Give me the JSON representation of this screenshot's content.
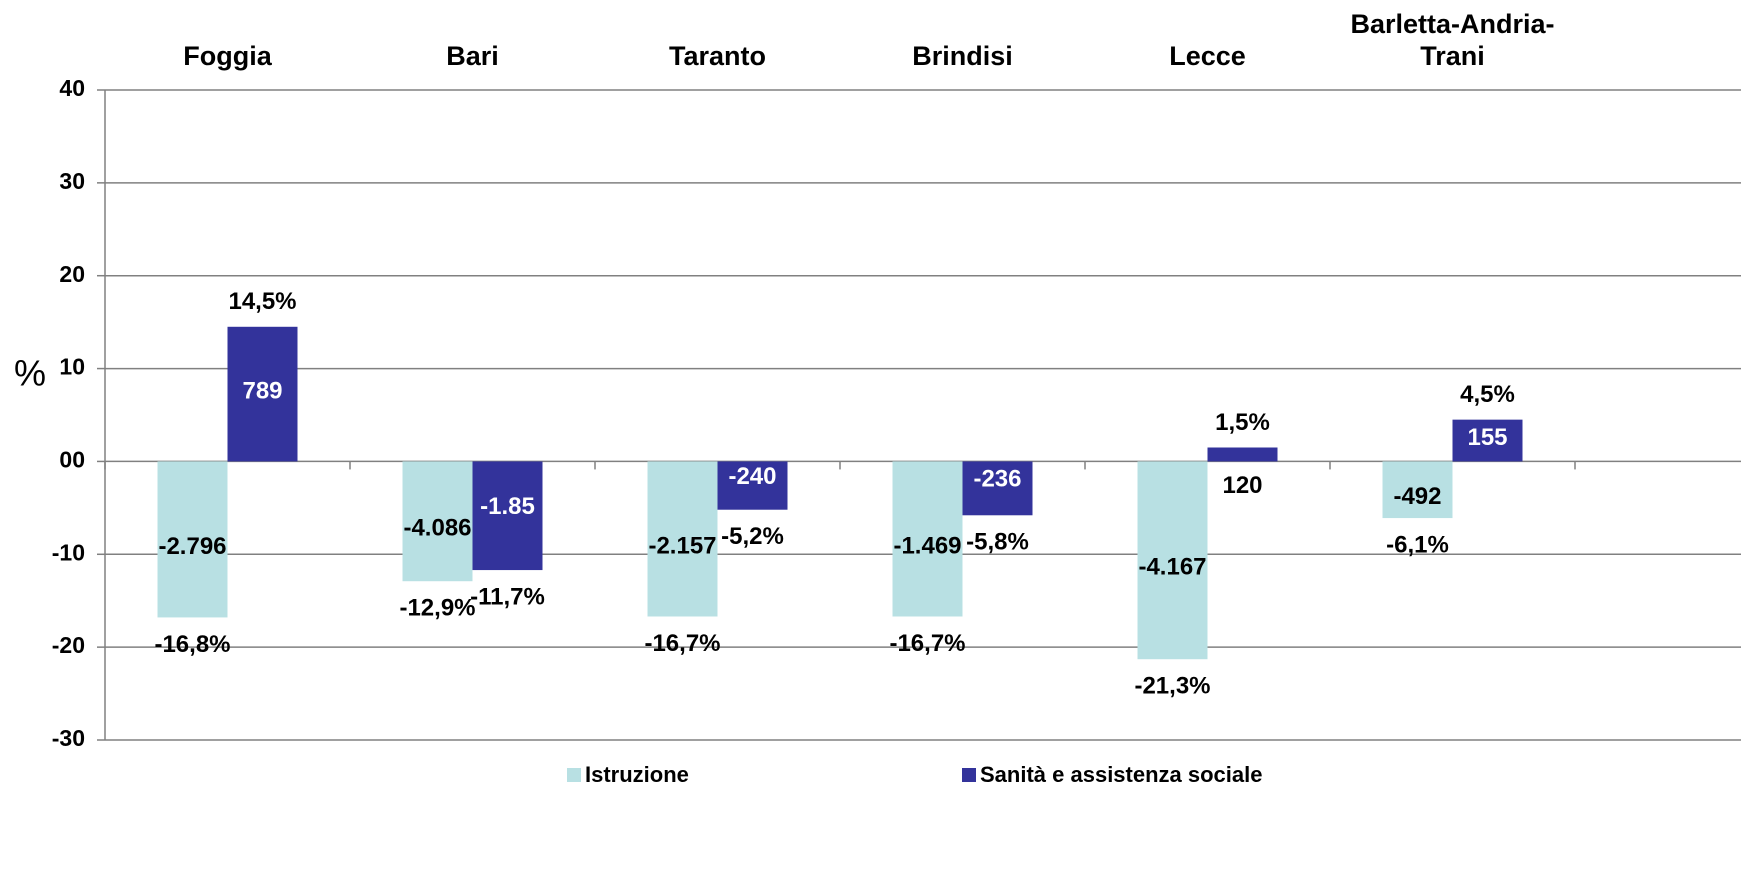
{
  "chart_data": {
    "type": "bar",
    "categories": [
      "Foggia",
      "Bari",
      "Taranto",
      "Brindisi",
      "Lecce",
      "Barletta-Andria-Trani"
    ],
    "y_label": "%",
    "series": [
      {
        "name": "Istruzione",
        "color": "#b8e0e3",
        "values": [
          -16.8,
          -12.9,
          -16.7,
          -16.7,
          -21.3,
          -6.1
        ],
        "value_labels": [
          "-16,8%",
          "-12,9%",
          "-16,7%",
          "-16,7%",
          "-21,3%",
          "-6,1%"
        ],
        "count_labels": [
          "-2.796",
          "-4.086",
          "-2.157",
          "-1.469",
          "-4.167",
          "-492"
        ]
      },
      {
        "name": "Sanità e assistenza sociale",
        "color": "#33339b",
        "values": [
          14.5,
          -11.7,
          -5.2,
          -5.8,
          1.5,
          4.5
        ],
        "value_labels": [
          "14,5%",
          "-11,7%",
          "-5,2%",
          "-5,8%",
          "1,5%",
          "4,5%"
        ],
        "count_labels": [
          "789",
          "-1.85",
          "-240",
          "-236",
          "120",
          "155"
        ]
      }
    ],
    "ylim": [
      -30,
      40
    ],
    "yticks": [
      -30,
      -20,
      -10,
      {
        "value": 0,
        "label": "00"
      },
      10,
      20,
      30,
      40
    ],
    "grid": true
  }
}
